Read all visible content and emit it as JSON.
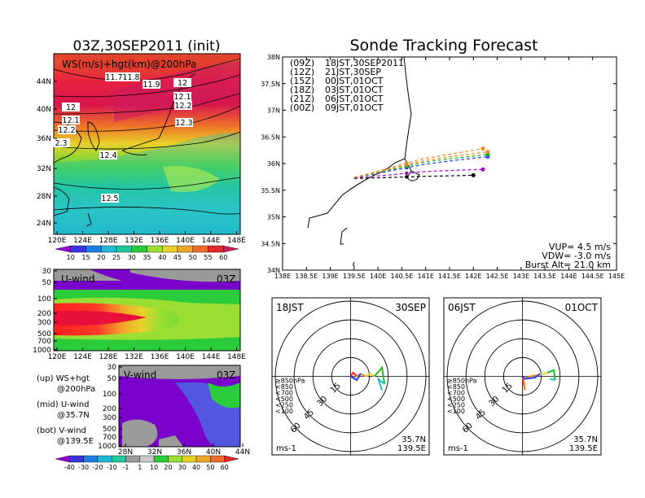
{
  "titles": {
    "init": "03Z,30SEP2011 (init)",
    "main": "Sonde Tracking Forecast"
  },
  "panel_top_left": {
    "label": "WS(m/s)+hgt(km)@200hPa",
    "lat_ticks": [
      "44N",
      "40N",
      "36N",
      "32N",
      "28N",
      "24N"
    ],
    "lon_ticks": [
      "120E",
      "124E",
      "128E",
      "132E",
      "136E",
      "140E",
      "144E",
      "148E"
    ],
    "contour_labels": [
      "11.7",
      "11.8",
      "11.9",
      "12",
      "12",
      "12.1",
      "12.1",
      "12.2",
      "12.2",
      "12.3",
      "2.3",
      "12.4",
      "12.5"
    ],
    "colorbar_ticks": [
      "10",
      "15",
      "20",
      "25",
      "30",
      "35",
      "40",
      "45",
      "50",
      "55",
      "60"
    ],
    "colorbar_colors": [
      "#9400d3",
      "#3a35e0",
      "#1f7be6",
      "#21b8d6",
      "#22c99b",
      "#2bcc3a",
      "#9ade33",
      "#e8d229",
      "#f0a628",
      "#ee6b2a",
      "#e02a2a",
      "#cc1a5e"
    ]
  },
  "panel_mid_left": {
    "label": "U-wind",
    "time": "03Z",
    "p_ticks": [
      "30",
      "50",
      "100",
      "200",
      "300",
      "500",
      "700",
      "1000"
    ],
    "lon_ticks": [
      "120E",
      "124E",
      "128E",
      "132E",
      "136E",
      "140E",
      "144E",
      "148E"
    ]
  },
  "panel_bot_left": {
    "label": "V-wind",
    "time": "03Z",
    "p_ticks": [
      "30",
      "50",
      "100",
      "200",
      "300",
      "500",
      "700",
      "1000"
    ],
    "lat_ticks": [
      "28N",
      "32N",
      "36N",
      "40N",
      "44N"
    ],
    "colorbar_ticks": [
      "-40",
      "-30",
      "-20",
      "-10",
      "-1",
      "1",
      "10",
      "20",
      "30",
      "40",
      "50",
      "60"
    ],
    "colorbar_colors": [
      "#9400d3",
      "#3a35e0",
      "#1f7be6",
      "#21b8d6",
      "#22c99b",
      "#9a9a9a",
      "#c8c8c8",
      "#2bcc3a",
      "#9ade33",
      "#e8d229",
      "#f0a628",
      "#ee6b2a",
      "#e02a2a"
    ]
  },
  "legend_text": {
    "up": "(up) WS+hgt",
    "up2": "@200hPa",
    "mid": "(mid) U-wind",
    "mid2": "@35.7N",
    "bot": "(bot) V-wind",
    "bot2": "@139.5E"
  },
  "chart_data": [
    {
      "type": "line",
      "title": "Sonde Tracking Forecast",
      "x_ticks": [
        "138E",
        "138.5E",
        "139E",
        "139.5E",
        "140E",
        "140.5E",
        "141E",
        "141.5E",
        "142E",
        "142.5E",
        "143E",
        "143.5E",
        "144E",
        "144.5E",
        "145E"
      ],
      "y_ticks": [
        "38N",
        "37.5N",
        "37N",
        "36.5N",
        "36N",
        "35.5N",
        "35N",
        "34.5N",
        "34N"
      ],
      "xlim": [
        138,
        145
      ],
      "ylim": [
        34,
        38
      ],
      "series": [
        {
          "name": "(09Z) 18JST,30SEP2011",
          "color": "#000000",
          "x": [
            139.5,
            139.9,
            140.3,
            140.6,
            141.0,
            141.5,
            142.0
          ],
          "y": [
            35.72,
            35.73,
            35.74,
            35.75,
            35.76,
            35.77,
            35.78
          ]
        },
        {
          "name": "(12Z) 21JST,30SEP",
          "color": "#a000c8",
          "x": [
            139.5,
            139.9,
            140.3,
            140.6,
            141.0,
            141.5,
            142.2
          ],
          "y": [
            35.73,
            35.76,
            35.79,
            35.82,
            35.85,
            35.87,
            35.89
          ]
        },
        {
          "name": "(15Z) 00JST,01OCT",
          "color": "#2040ff",
          "x": [
            139.5,
            139.9,
            140.3,
            140.6,
            141.0,
            141.6,
            142.3
          ],
          "y": [
            35.74,
            35.8,
            35.87,
            35.92,
            35.99,
            36.06,
            36.13
          ]
        },
        {
          "name": "(18Z) 03JST,01OCT",
          "color": "#10b010",
          "x": [
            139.5,
            139.9,
            140.3,
            140.6,
            141.0,
            141.6,
            142.3
          ],
          "y": [
            35.74,
            35.81,
            35.89,
            35.95,
            36.03,
            36.1,
            36.17
          ]
        },
        {
          "name": "(21Z) 06JST,01OCT",
          "color": "#ee8a22",
          "x": [
            139.5,
            139.9,
            140.3,
            140.6,
            141.0,
            141.6,
            142.3
          ],
          "y": [
            35.74,
            35.82,
            35.91,
            35.98,
            36.06,
            36.14,
            36.22
          ]
        },
        {
          "name": "(00Z) 09JST,01OCT",
          "color": "#ee8a22",
          "x": [
            139.5,
            139.9,
            140.3,
            140.6,
            141.0,
            141.6,
            142.2
          ],
          "y": [
            35.74,
            35.83,
            35.93,
            36.01,
            36.1,
            36.19,
            36.28
          ]
        }
      ],
      "annotations": [
        "VUP= 4.5 m/s",
        "VDW= -3.0 m/s",
        "Burst Alt= 21.0 km"
      ]
    },
    {
      "type": "polar",
      "left_label": "18JST",
      "right_label": "30SEP",
      "rings": [
        "15",
        "30",
        "45",
        "60"
      ],
      "unit": "ms-1",
      "location": [
        "35.7N",
        "139.5E"
      ],
      "legend": [
        {
          "label": "≥850hPa",
          "color": "#ff2020"
        },
        {
          "label": "<850",
          "color": "#ee8a22"
        },
        {
          "label": "<700",
          "color": "#e6d820"
        },
        {
          "label": "<500",
          "color": "#20c020"
        },
        {
          "label": "<250",
          "color": "#20c0c0"
        },
        {
          "label": "<100",
          "color": "#2040ff"
        }
      ],
      "hodograph": [
        {
          "color": "#ff2020",
          "u": [
            0,
            2,
            4,
            3
          ],
          "v": [
            0,
            3,
            1,
            -1
          ]
        },
        {
          "color": "#ee8a22",
          "u": [
            3,
            8,
            12
          ],
          "v": [
            -1,
            2,
            0
          ]
        },
        {
          "color": "#e6d820",
          "u": [
            12,
            16,
            19
          ],
          "v": [
            0,
            2,
            0
          ]
        },
        {
          "color": "#20c020",
          "u": [
            19,
            25,
            27
          ],
          "v": [
            0,
            7,
            -6
          ]
        },
        {
          "color": "#20c0c0",
          "u": [
            27,
            22,
            25
          ],
          "v": [
            -6,
            -2,
            -11
          ]
        },
        {
          "color": "#2040ff",
          "u": [
            0,
            5,
            8
          ],
          "v": [
            0,
            -3,
            2
          ]
        }
      ]
    },
    {
      "type": "polar",
      "left_label": "06JST",
      "right_label": "01OCT",
      "rings": [
        "15",
        "30",
        "45",
        "60"
      ],
      "unit": "ms-1",
      "location": [
        "35.7N",
        "139.5E"
      ],
      "legend": [
        {
          "label": "≥850hPa",
          "color": "#ff2020"
        },
        {
          "label": "<850",
          "color": "#ee8a22"
        },
        {
          "label": "<700",
          "color": "#e6d820"
        },
        {
          "label": "<500",
          "color": "#20c020"
        },
        {
          "label": "<250",
          "color": "#20c0c0"
        },
        {
          "label": "<100",
          "color": "#2040ff"
        }
      ],
      "hodograph": [
        {
          "color": "#ff2020",
          "u": [
            0,
            1,
            2
          ],
          "v": [
            0,
            -6,
            -11
          ]
        },
        {
          "color": "#ee8a22",
          "u": [
            2,
            1,
            6,
            12
          ],
          "v": [
            -11,
            -2,
            0,
            1
          ]
        },
        {
          "color": "#e6d820",
          "u": [
            12,
            17,
            20
          ],
          "v": [
            1,
            2,
            3
          ]
        },
        {
          "color": "#20c020",
          "u": [
            20,
            25,
            26
          ],
          "v": [
            3,
            5,
            -3
          ]
        },
        {
          "color": "#20c0c0",
          "u": [
            26,
            22
          ],
          "v": [
            -3,
            -2
          ]
        },
        {
          "color": "#2040ff",
          "u": [
            0,
            2,
            10,
            14
          ],
          "v": [
            0,
            -2,
            -1,
            2
          ]
        }
      ]
    }
  ]
}
